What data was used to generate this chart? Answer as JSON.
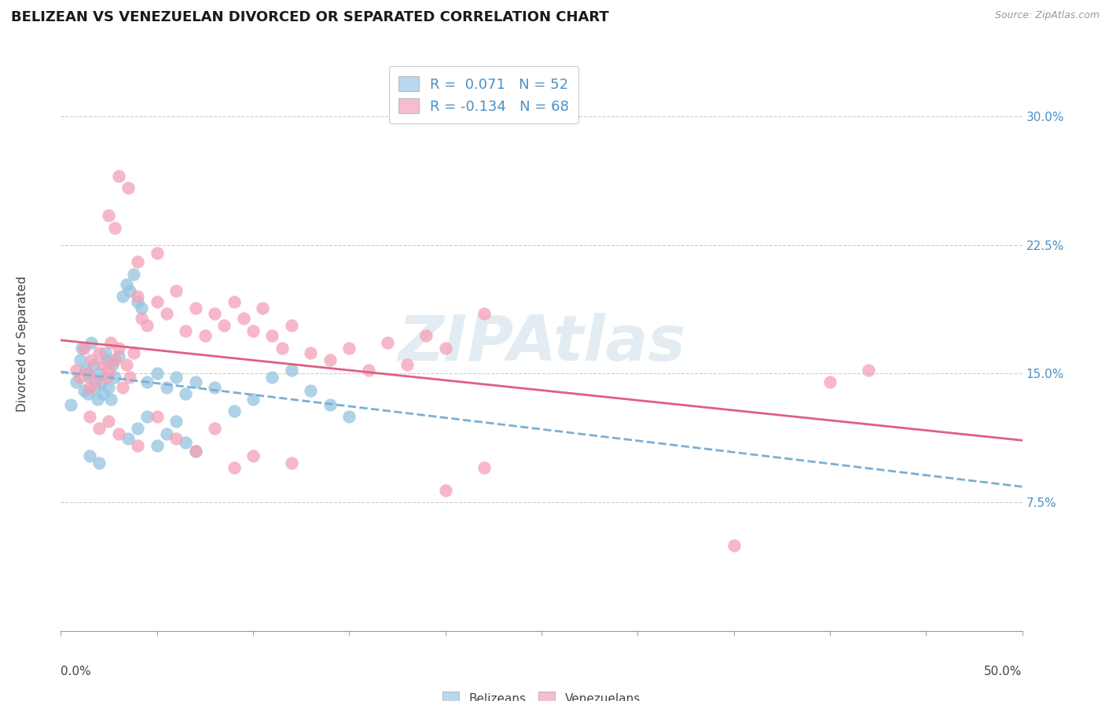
{
  "title": "BELIZEAN VS VENEZUELAN DIVORCED OR SEPARATED CORRELATION CHART",
  "source": "Source: ZipAtlas.com",
  "ylabel": "Divorced or Separated",
  "xmin": 0.0,
  "xmax": 50.0,
  "ymin": 0.0,
  "ymax": 33.5,
  "yticks": [
    7.5,
    15.0,
    22.5,
    30.0
  ],
  "belizean_R": 0.071,
  "belizean_N": 52,
  "venezuelan_R": -0.134,
  "venezuelan_N": 68,
  "blue_scatter_color": "#94c4e0",
  "blue_line_color": "#7ab0d4",
  "pink_scatter_color": "#f4a0b8",
  "pink_line_color": "#e06080",
  "legend_blue_face": "#b8d8f0",
  "legend_pink_face": "#f4bece",
  "watermark": "ZIPAtlas",
  "watermark_color": "#ccdde8",
  "grid_color": "#cccccc",
  "title_fontsize": 13,
  "axis_label_fontsize": 11,
  "tick_fontsize": 11,
  "legend_fontsize": 13,
  "blue_scatter": [
    [
      0.5,
      13.2
    ],
    [
      0.8,
      14.5
    ],
    [
      1.0,
      15.8
    ],
    [
      1.1,
      16.5
    ],
    [
      1.2,
      14.0
    ],
    [
      1.3,
      15.2
    ],
    [
      1.4,
      13.8
    ],
    [
      1.5,
      14.8
    ],
    [
      1.6,
      16.8
    ],
    [
      1.7,
      15.5
    ],
    [
      1.8,
      14.2
    ],
    [
      1.9,
      13.5
    ],
    [
      2.0,
      15.0
    ],
    [
      2.1,
      14.5
    ],
    [
      2.2,
      13.8
    ],
    [
      2.3,
      16.2
    ],
    [
      2.4,
      15.8
    ],
    [
      2.5,
      14.2
    ],
    [
      2.6,
      13.5
    ],
    [
      2.7,
      15.5
    ],
    [
      2.8,
      14.8
    ],
    [
      3.0,
      16.0
    ],
    [
      3.2,
      19.5
    ],
    [
      3.4,
      20.2
    ],
    [
      3.6,
      19.8
    ],
    [
      3.8,
      20.8
    ],
    [
      4.0,
      19.2
    ],
    [
      4.2,
      18.8
    ],
    [
      4.5,
      14.5
    ],
    [
      5.0,
      15.0
    ],
    [
      5.5,
      14.2
    ],
    [
      6.0,
      14.8
    ],
    [
      6.5,
      13.8
    ],
    [
      7.0,
      14.5
    ],
    [
      8.0,
      14.2
    ],
    [
      9.0,
      12.8
    ],
    [
      10.0,
      13.5
    ],
    [
      11.0,
      14.8
    ],
    [
      12.0,
      15.2
    ],
    [
      13.0,
      14.0
    ],
    [
      14.0,
      13.2
    ],
    [
      15.0,
      12.5
    ],
    [
      3.5,
      11.2
    ],
    [
      4.0,
      11.8
    ],
    [
      4.5,
      12.5
    ],
    [
      5.0,
      10.8
    ],
    [
      5.5,
      11.5
    ],
    [
      6.0,
      12.2
    ],
    [
      6.5,
      11.0
    ],
    [
      7.0,
      10.5
    ],
    [
      1.5,
      10.2
    ],
    [
      2.0,
      9.8
    ]
  ],
  "pink_scatter": [
    [
      0.8,
      15.2
    ],
    [
      1.0,
      14.8
    ],
    [
      1.2,
      16.5
    ],
    [
      1.4,
      15.0
    ],
    [
      1.5,
      14.2
    ],
    [
      1.6,
      15.8
    ],
    [
      1.8,
      14.5
    ],
    [
      2.0,
      16.2
    ],
    [
      2.2,
      15.5
    ],
    [
      2.4,
      14.8
    ],
    [
      2.5,
      15.2
    ],
    [
      2.6,
      16.8
    ],
    [
      2.8,
      15.8
    ],
    [
      3.0,
      16.5
    ],
    [
      3.2,
      14.2
    ],
    [
      3.4,
      15.5
    ],
    [
      3.6,
      14.8
    ],
    [
      3.8,
      16.2
    ],
    [
      4.0,
      19.5
    ],
    [
      4.2,
      18.2
    ],
    [
      4.5,
      17.8
    ],
    [
      5.0,
      19.2
    ],
    [
      5.5,
      18.5
    ],
    [
      6.0,
      19.8
    ],
    [
      6.5,
      17.5
    ],
    [
      7.0,
      18.8
    ],
    [
      7.5,
      17.2
    ],
    [
      8.0,
      18.5
    ],
    [
      8.5,
      17.8
    ],
    [
      9.0,
      19.2
    ],
    [
      9.5,
      18.2
    ],
    [
      10.0,
      17.5
    ],
    [
      10.5,
      18.8
    ],
    [
      11.0,
      17.2
    ],
    [
      11.5,
      16.5
    ],
    [
      12.0,
      17.8
    ],
    [
      13.0,
      16.2
    ],
    [
      14.0,
      15.8
    ],
    [
      15.0,
      16.5
    ],
    [
      16.0,
      15.2
    ],
    [
      17.0,
      16.8
    ],
    [
      18.0,
      15.5
    ],
    [
      19.0,
      17.2
    ],
    [
      20.0,
      16.5
    ],
    [
      22.0,
      18.5
    ],
    [
      3.0,
      26.5
    ],
    [
      3.5,
      25.8
    ],
    [
      2.5,
      24.2
    ],
    [
      2.8,
      23.5
    ],
    [
      5.0,
      22.0
    ],
    [
      4.0,
      21.5
    ],
    [
      35.0,
      5.0
    ],
    [
      40.0,
      14.5
    ],
    [
      42.0,
      15.2
    ],
    [
      1.5,
      12.5
    ],
    [
      2.0,
      11.8
    ],
    [
      2.5,
      12.2
    ],
    [
      3.0,
      11.5
    ],
    [
      4.0,
      10.8
    ],
    [
      5.0,
      12.5
    ],
    [
      6.0,
      11.2
    ],
    [
      7.0,
      10.5
    ],
    [
      8.0,
      11.8
    ],
    [
      9.0,
      9.5
    ],
    [
      10.0,
      10.2
    ],
    [
      12.0,
      9.8
    ],
    [
      20.0,
      8.2
    ],
    [
      22.0,
      9.5
    ]
  ]
}
